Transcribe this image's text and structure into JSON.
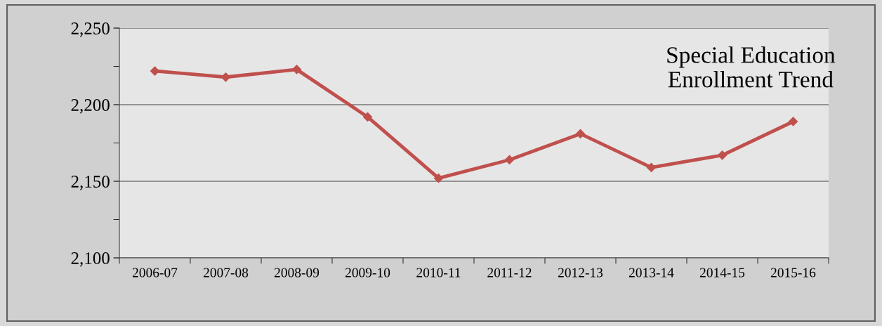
{
  "chart_data": {
    "type": "line",
    "title": "Special Education\nEnrollment Trend",
    "categories": [
      "2006-07",
      "2007-08",
      "2008-09",
      "2009-10",
      "2010-11",
      "2011-12",
      "2012-13",
      "2013-14",
      "2014-15",
      "2015-16"
    ],
    "series": [
      {
        "color": "#c0504d",
        "values": [
          2222,
          2218,
          2223,
          2192,
          2152,
          2164,
          2181,
          2159,
          2167,
          2189
        ]
      }
    ],
    "ylim": [
      2100,
      2250
    ],
    "yticks": [
      {
        "value": 2100,
        "label": "2,100"
      },
      {
        "value": 2125,
        "label": null
      },
      {
        "value": 2150,
        "label": "2,150"
      },
      {
        "value": 2175,
        "label": null
      },
      {
        "value": 2200,
        "label": "2,200"
      },
      {
        "value": 2225,
        "label": null
      },
      {
        "value": 2250,
        "label": "2,250"
      }
    ],
    "grid": "y",
    "marker": "diamond",
    "line_style": "solid",
    "legend": false
  }
}
